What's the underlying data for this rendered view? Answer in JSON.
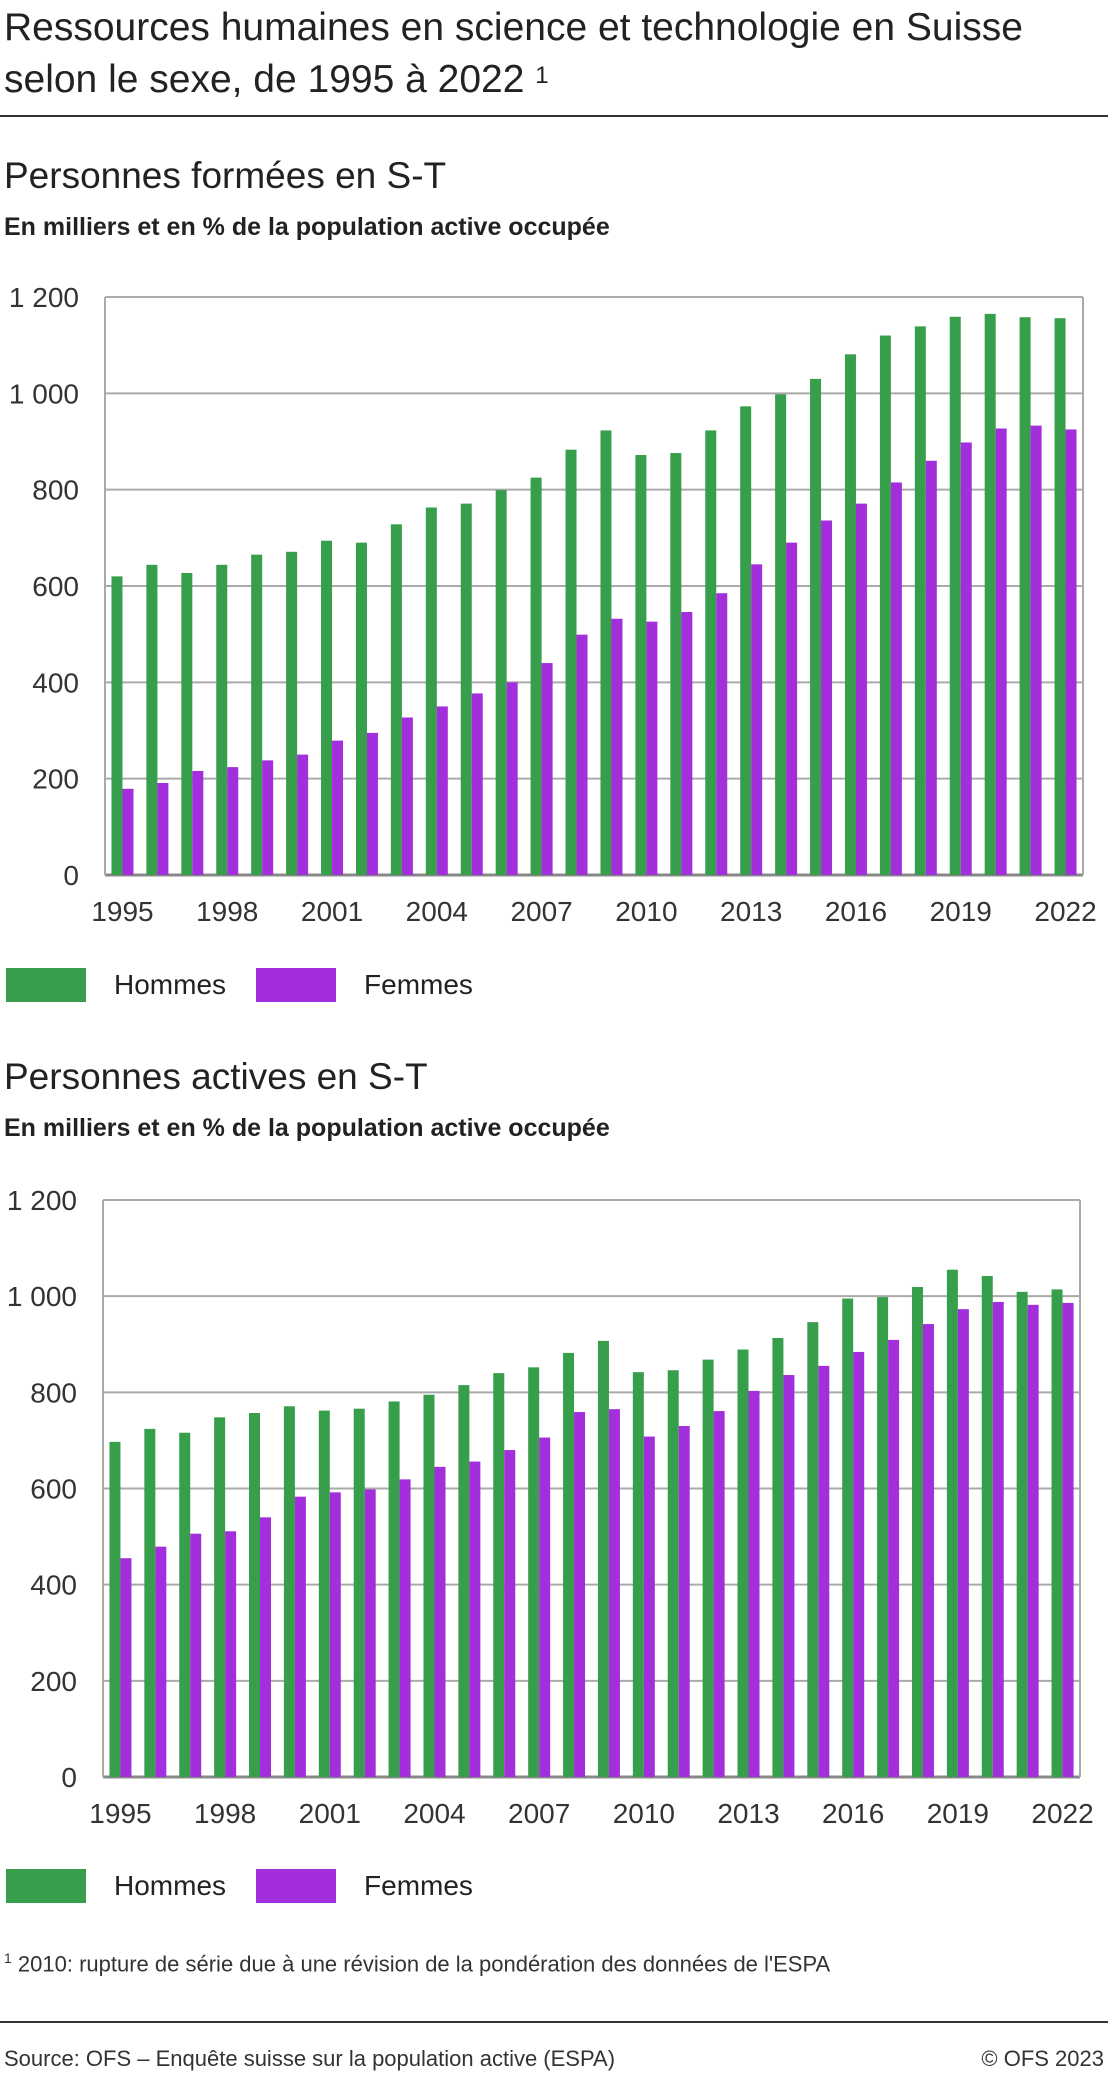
{
  "title": "Ressources humaines en science et technologie en Suisse selon le sexe, de 1995 à 2022",
  "title_footnote_ref": "1",
  "colors": {
    "hommes": "#379e4c",
    "femmes": "#a32fdc",
    "grid": "#aaaaaa"
  },
  "legend": {
    "hommes": "Hommes",
    "femmes": "Femmes"
  },
  "chart_data": [
    {
      "type": "bar",
      "title": "Personnes formées en S-T",
      "subtitle": "En milliers et en % de la population active occupée",
      "categories": [
        1995,
        1996,
        1997,
        1998,
        1999,
        2000,
        2001,
        2002,
        2003,
        2004,
        2005,
        2006,
        2007,
        2008,
        2009,
        2010,
        2011,
        2012,
        2013,
        2014,
        2015,
        2016,
        2017,
        2018,
        2019,
        2020,
        2021,
        2022
      ],
      "x_tick_labels": [
        "1995",
        "1998",
        "2001",
        "2004",
        "2007",
        "2010",
        "2013",
        "2016",
        "2019",
        "2022"
      ],
      "y_tick_labels": [
        "0",
        "200",
        "400",
        "600",
        "800",
        "1 000",
        "1 200"
      ],
      "ylim": [
        0,
        1200
      ],
      "grid": true,
      "legend_position": "bottom-left",
      "series": [
        {
          "name": "Hommes",
          "values": [
            620,
            644,
            627,
            644,
            665,
            671,
            694,
            690,
            728,
            763,
            771,
            799,
            825,
            883,
            923,
            872,
            876,
            923,
            973,
            998,
            1030,
            1081,
            1120,
            1139,
            1159,
            1165,
            1158,
            1156
          ]
        },
        {
          "name": "Femmes",
          "values": [
            179,
            191,
            216,
            224,
            238,
            250,
            279,
            295,
            327,
            350,
            377,
            400,
            440,
            499,
            532,
            526,
            546,
            585,
            645,
            690,
            736,
            771,
            815,
            860,
            898,
            927,
            933,
            925
          ]
        }
      ]
    },
    {
      "type": "bar",
      "title": "Personnes actives en S-T",
      "subtitle": "En milliers et en % de la population active occupée",
      "categories": [
        1995,
        1996,
        1997,
        1998,
        1999,
        2000,
        2001,
        2002,
        2003,
        2004,
        2005,
        2006,
        2007,
        2008,
        2009,
        2010,
        2011,
        2012,
        2013,
        2014,
        2015,
        2016,
        2017,
        2018,
        2019,
        2020,
        2021,
        2022
      ],
      "x_tick_labels": [
        "1995",
        "1998",
        "2001",
        "2004",
        "2007",
        "2010",
        "2013",
        "2016",
        "2019",
        "2022"
      ],
      "y_tick_labels": [
        "0",
        "200",
        "400",
        "600",
        "800",
        "1 000",
        "1 200"
      ],
      "ylim": [
        0,
        1200
      ],
      "grid": true,
      "legend_position": "bottom-left",
      "series": [
        {
          "name": "Hommes",
          "values": [
            697,
            724,
            716,
            748,
            757,
            771,
            762,
            766,
            781,
            795,
            815,
            840,
            852,
            882,
            907,
            842,
            846,
            868,
            889,
            913,
            946,
            995,
            998,
            1019,
            1055,
            1042,
            1009,
            1014
          ]
        },
        {
          "name": "Femmes",
          "values": [
            455,
            479,
            506,
            511,
            540,
            583,
            592,
            598,
            619,
            645,
            656,
            680,
            706,
            759,
            765,
            708,
            730,
            761,
            803,
            836,
            855,
            884,
            909,
            942,
            973,
            988,
            982,
            986
          ]
        }
      ]
    }
  ],
  "footnote": {
    "ref": "1",
    "text": "2010: rupture de série due à une révision de la pondération des données de l'ESPA"
  },
  "source": "Source: OFS – Enquête suisse sur la population active (ESPA)",
  "copyright": "© OFS 2023"
}
